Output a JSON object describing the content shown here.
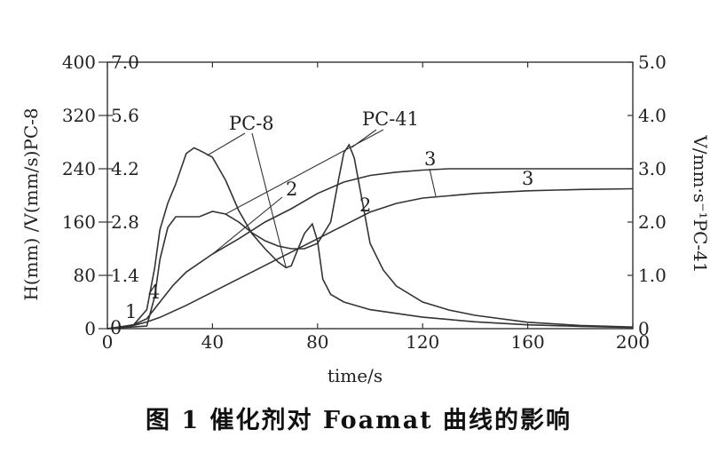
{
  "chart_data": {
    "type": "line",
    "caption": "图 1  催化剂对 Foamat 曲线的影响",
    "xlabel": "time/s",
    "ylabel_left": "H(mm) /V(mm/s)PC-8",
    "ylabel_right": "V/mm·s⁻¹PC-41",
    "xlim": [
      0,
      200
    ],
    "xticks": [
      0,
      40,
      80,
      120,
      160,
      200
    ],
    "y_left_H": {
      "lim": [
        0,
        400
      ],
      "ticks": [
        "0",
        "80",
        "160",
        "240",
        "320",
        "400"
      ]
    },
    "y_left_V": {
      "lim": [
        0,
        7.0
      ],
      "ticks": [
        "0",
        "1.4",
        "2.8",
        "4.2",
        "5.6",
        "7.0"
      ]
    },
    "y_right_V": {
      "lim": [
        0,
        5.0
      ],
      "ticks": [
        "0",
        "1.0",
        "2.0",
        "3.0",
        "4.0",
        "5.0"
      ]
    },
    "series": [
      {
        "axis": "H",
        "label": "2",
        "x": [
          0,
          5,
          10,
          15,
          20,
          25,
          30,
          40,
          50,
          60,
          70,
          80,
          90,
          100,
          110,
          120,
          130,
          140,
          160,
          180,
          200
        ],
        "y": [
          0,
          2,
          6,
          15,
          40,
          65,
          85,
          112,
          135,
          160,
          180,
          203,
          220,
          230,
          235,
          238,
          240,
          240,
          240,
          240,
          240
        ]
      },
      {
        "axis": "H",
        "label": "3",
        "x": [
          0,
          5,
          10,
          15,
          20,
          30,
          40,
          50,
          60,
          70,
          80,
          90,
          100,
          110,
          120,
          140,
          160,
          180,
          200
        ],
        "y": [
          0,
          2,
          5,
          10,
          17,
          35,
          55,
          75,
          95,
          115,
          135,
          155,
          175,
          188,
          196,
          203,
          207,
          209,
          210
        ]
      },
      {
        "axis": "V_PC-8",
        "label": "PC-8",
        "x": [
          0,
          10,
          15,
          18,
          20,
          23,
          26,
          30,
          33,
          36,
          40,
          45,
          50,
          55,
          60,
          65,
          68,
          70,
          72,
          75,
          78,
          80,
          82,
          85,
          90,
          100,
          120,
          140,
          160,
          180,
          200
        ],
        "y": [
          0,
          0.1,
          0.5,
          1.6,
          2.6,
          3.3,
          3.8,
          4.6,
          4.75,
          4.65,
          4.5,
          3.9,
          3.1,
          2.5,
          2.1,
          1.75,
          1.6,
          1.65,
          2.0,
          2.5,
          2.75,
          2.3,
          1.3,
          0.9,
          0.7,
          0.5,
          0.3,
          0.18,
          0.1,
          0.06,
          0.03
        ]
      },
      {
        "axis": "V_PC-41",
        "label": "PC-41",
        "x": [
          0,
          15,
          18,
          20,
          23,
          26,
          30,
          35,
          40,
          45,
          50,
          55,
          60,
          65,
          70,
          75,
          80,
          85,
          88,
          90,
          92,
          94,
          97,
          100,
          105,
          110,
          120,
          130,
          140,
          160,
          180,
          200
        ],
        "y": [
          0,
          0.05,
          0.6,
          1.3,
          1.9,
          2.1,
          2.1,
          2.1,
          2.2,
          2.15,
          2.0,
          1.8,
          1.65,
          1.55,
          1.5,
          1.5,
          1.6,
          2.0,
          2.8,
          3.3,
          3.45,
          3.2,
          2.4,
          1.6,
          1.1,
          0.8,
          0.5,
          0.35,
          0.25,
          0.12,
          0.06,
          0.03
        ]
      }
    ],
    "annotations": [
      {
        "text": "PC-8"
      },
      {
        "text": "PC-41"
      },
      {
        "text": "2"
      },
      {
        "text": "2"
      },
      {
        "text": "3"
      },
      {
        "text": "3"
      },
      {
        "text": "1"
      },
      {
        "text": "4"
      },
      {
        "text": "0"
      }
    ]
  }
}
